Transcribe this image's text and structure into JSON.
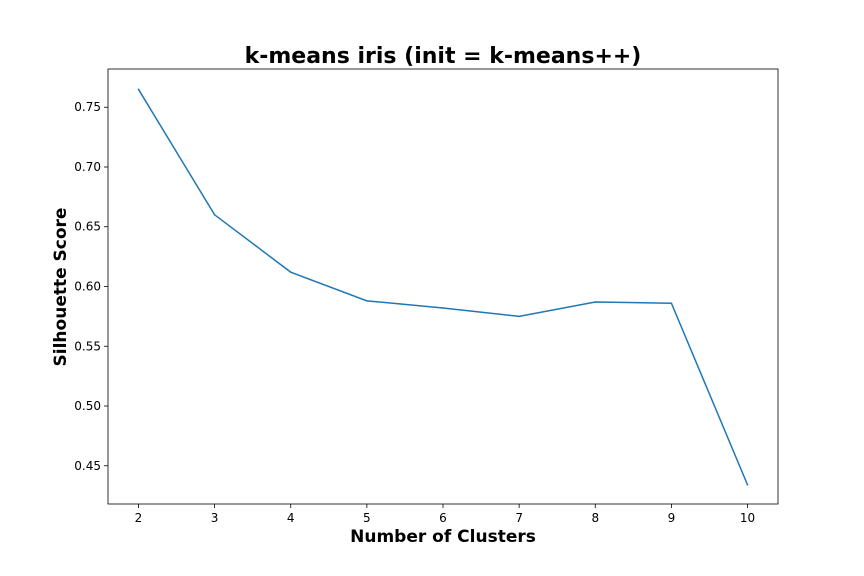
{
  "chart_data": {
    "type": "line",
    "title": "k-means iris (init = k-means++)",
    "xlabel": "Number of Clusters",
    "ylabel": "Silhouette Score",
    "x": [
      2,
      3,
      4,
      5,
      6,
      7,
      8,
      9,
      10
    ],
    "series": [
      {
        "values": [
          0.765,
          0.66,
          0.612,
          0.588,
          0.582,
          0.575,
          0.587,
          0.586,
          0.434
        ]
      }
    ],
    "xticks": [
      2,
      3,
      4,
      5,
      6,
      7,
      8,
      9,
      10
    ],
    "yticks": [
      0.45,
      0.5,
      0.55,
      0.6,
      0.65,
      0.7,
      0.75
    ],
    "ytick_labels": [
      "0.45",
      "0.50",
      "0.55",
      "0.60",
      "0.65",
      "0.70",
      "0.75"
    ],
    "xlim": [
      1.6,
      10.4
    ],
    "ylim": [
      0.418,
      0.782
    ],
    "grid": false,
    "line_color": "#1f77b4"
  }
}
